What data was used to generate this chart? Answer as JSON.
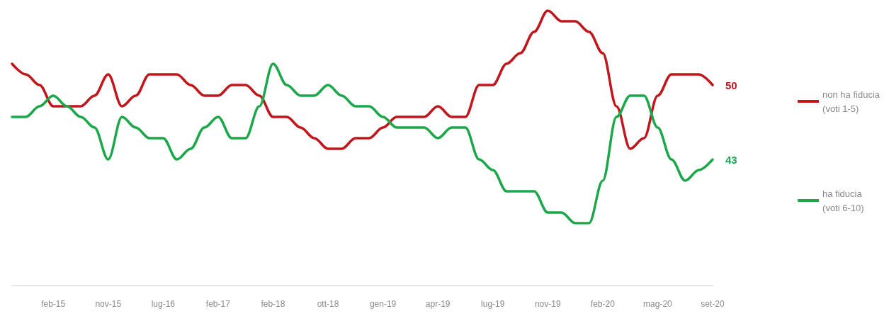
{
  "chart_data": {
    "type": "line",
    "categories": [
      null,
      null,
      null,
      "feb-15",
      null,
      null,
      null,
      "nov-15",
      null,
      null,
      null,
      "lug-16",
      null,
      null,
      null,
      "feb-17",
      null,
      null,
      null,
      "feb-18",
      null,
      null,
      null,
      "ott-18",
      null,
      null,
      null,
      "gen-19",
      null,
      null,
      null,
      "apr-19",
      null,
      null,
      null,
      "lug-19",
      null,
      null,
      null,
      "nov-19",
      null,
      null,
      null,
      "feb-20",
      null,
      null,
      null,
      "mag-20",
      null,
      null,
      null,
      "set-20"
    ],
    "series": [
      {
        "name": "non ha fiducia\n(voti 1-5)",
        "color": "#c0161c",
        "values": [
          52,
          51,
          50,
          48,
          48,
          48,
          49,
          51,
          48,
          49,
          51,
          51,
          51,
          50,
          49,
          49,
          50,
          50,
          49,
          47,
          47,
          46,
          45,
          44,
          44,
          45,
          45,
          46,
          47,
          47,
          47,
          48,
          47,
          47,
          50,
          50,
          52,
          53,
          55,
          57,
          56,
          56,
          55,
          53,
          48,
          44,
          45,
          49,
          51,
          51,
          51,
          50
        ],
        "value_labels": [
          null,
          null,
          null,
          null,
          null,
          null,
          null,
          null,
          null,
          null,
          null,
          null,
          null,
          null,
          null,
          null,
          null,
          null,
          null,
          null,
          null,
          null,
          null,
          null,
          null,
          null,
          null,
          null,
          null,
          null,
          null,
          null,
          null,
          null,
          null,
          null,
          null,
          null,
          null,
          null,
          null,
          null,
          null,
          null,
          null,
          null,
          null,
          null,
          null,
          null,
          null,
          "50"
        ]
      },
      {
        "name": "ha fiducia\n(voti 6-10)",
        "color": "#1ca84a",
        "values": [
          47,
          47,
          48,
          49,
          48,
          47,
          46,
          43,
          47,
          46,
          45,
          45,
          43,
          44,
          46,
          47,
          45,
          45,
          48,
          52,
          50,
          49,
          49,
          50,
          49,
          48,
          48,
          47,
          46,
          46,
          46,
          45,
          46,
          46,
          43,
          42,
          40,
          40,
          40,
          38,
          38,
          37,
          37,
          41,
          47,
          49,
          49,
          46,
          43,
          41,
          42,
          43
        ],
        "value_labels": [
          null,
          null,
          null,
          null,
          null,
          null,
          null,
          null,
          null,
          null,
          null,
          null,
          null,
          null,
          null,
          null,
          null,
          null,
          null,
          null,
          null,
          null,
          null,
          null,
          null,
          null,
          null,
          null,
          null,
          null,
          null,
          null,
          null,
          null,
          null,
          null,
          null,
          null,
          null,
          null,
          null,
          null,
          null,
          null,
          null,
          null,
          null,
          null,
          null,
          null,
          null,
          "43"
        ]
      }
    ],
    "legend": "right"
  }
}
